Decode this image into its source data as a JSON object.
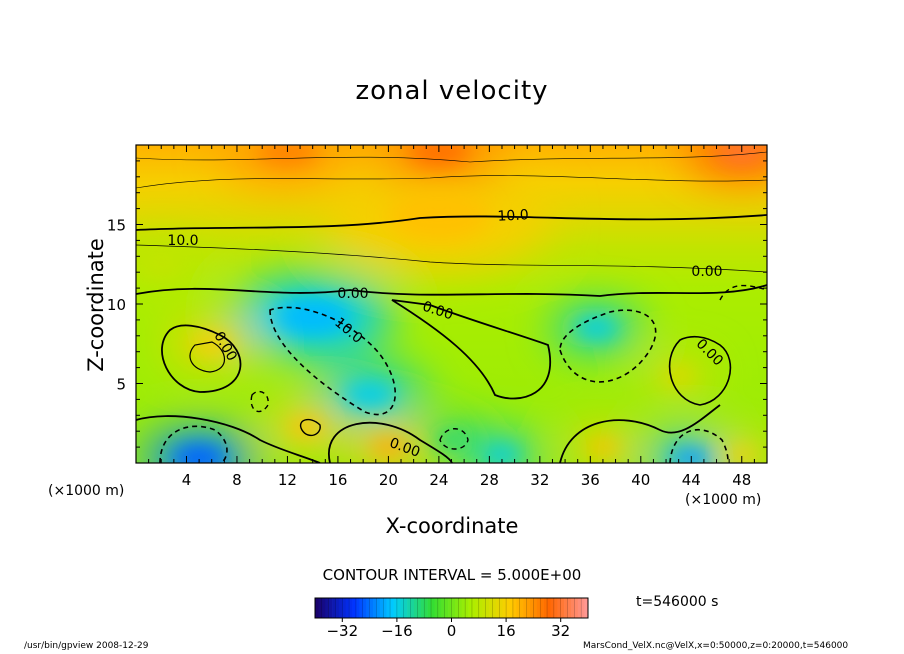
{
  "chart_data": {
    "type": "heatmap",
    "title": "zonal velocity",
    "xlabel": "X-coordinate",
    "ylabel": "Z-coordinate",
    "x_unit_label_left": "(×1000 m)",
    "x_unit_label_right": "(×1000 m)",
    "xlim": [
      0,
      50
    ],
    "ylim": [
      0,
      20
    ],
    "xticks": [
      4,
      8,
      12,
      16,
      20,
      24,
      28,
      32,
      36,
      40,
      44,
      48
    ],
    "yticks": [
      5,
      10,
      15
    ],
    "contour_interval_text": "CONTOUR INTERVAL = 5.000E+00",
    "contour_labels": [
      "10.0",
      "10.0",
      "0.00",
      "0.00",
      "10.0",
      "0.00",
      "0.00",
      "0.00",
      "0.00"
    ],
    "colorbar": {
      "range": [
        -40,
        40
      ],
      "ticks": [
        -32,
        -16,
        0,
        16,
        32
      ],
      "colormap": [
        "#1a0066",
        "#0033ff",
        "#00ccff",
        "#33dd33",
        "#aaee00",
        "#ffcc00",
        "#ff6600",
        "#ff9999"
      ]
    },
    "time_label": "t=546000 s",
    "features": [
      {
        "x": 5,
        "z": 0.3,
        "value": -22
      },
      {
        "x": 14,
        "z": 9.2,
        "value": -16
      },
      {
        "x": 18.5,
        "z": 4.3,
        "value": -14
      },
      {
        "x": 36.5,
        "z": 8.5,
        "value": -14
      },
      {
        "x": 44,
        "z": 0.3,
        "value": -18
      },
      {
        "x": 25,
        "z": 1.5,
        "value": -8
      },
      {
        "x": 29,
        "z": 0.5,
        "value": -14
      },
      {
        "x": 6,
        "z": 7.5,
        "value": 14
      },
      {
        "x": 13.5,
        "z": 2.3,
        "value": 16
      },
      {
        "x": 20,
        "z": 1.0,
        "value": 18
      },
      {
        "x": 37,
        "z": 1.0,
        "value": 16
      },
      {
        "x": 43,
        "z": 5.5,
        "value": 12
      },
      {
        "x": 48,
        "z": 0.5,
        "value": 14
      },
      {
        "x": 24,
        "z": 15.5,
        "value": 16
      },
      {
        "x": 12,
        "z": 19.6,
        "value": 22
      },
      {
        "x": 24,
        "z": 19.6,
        "value": 24
      },
      {
        "x": 48,
        "z": 19.6,
        "value": 28
      },
      {
        "x": 2,
        "z": 12.5,
        "value": 8
      }
    ]
  },
  "footer": {
    "left": "/usr/bin/gpview  2008-12-29",
    "right": "MarsCond_VelX.nc@VelX,x=0:50000,z=0:20000,t=546000"
  }
}
